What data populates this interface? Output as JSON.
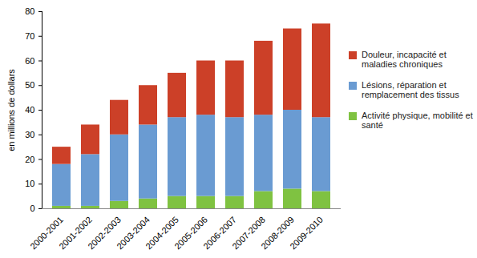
{
  "chart_data": {
    "type": "bar",
    "stacked": true,
    "y_label": "en millions de dollars",
    "categories": [
      "2000-2001",
      "2001-2002",
      "2002-2003",
      "2003-2004",
      "2004-2005",
      "2005-2006",
      "2006-2007",
      "2007-2008",
      "2008-2009",
      "2009-2010"
    ],
    "series": [
      {
        "name": "Activité physique, mobilité et santé",
        "color": "#7fc241",
        "values": [
          1,
          1,
          3,
          4,
          5,
          5,
          5,
          7,
          8,
          7
        ]
      },
      {
        "name": "Lésions, réparation et remplacement des tissus",
        "color": "#6a9bd2",
        "values": [
          17,
          21,
          27,
          30,
          32,
          33,
          32,
          31,
          32,
          30
        ]
      },
      {
        "name": "Douleur, incapacité et maladies chroniques",
        "color": "#cc4028",
        "values": [
          7,
          12,
          14,
          16,
          18,
          22,
          23,
          30,
          33,
          38
        ]
      }
    ],
    "ylim": [
      0,
      80
    ],
    "yticks": [
      0,
      10,
      20,
      30,
      40,
      50,
      60,
      70,
      80
    ],
    "grid": false,
    "legend": "right"
  }
}
